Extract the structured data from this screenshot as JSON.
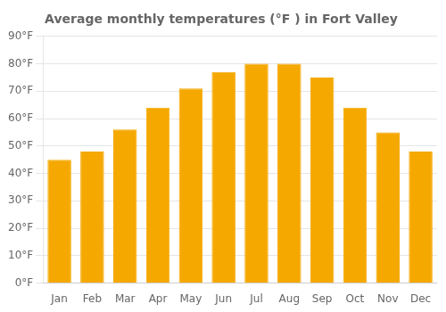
{
  "chart_data": {
    "type": "bar",
    "title": "Average monthly temperatures (°F ) in Fort Valley",
    "categories": [
      "Jan",
      "Feb",
      "Mar",
      "Apr",
      "May",
      "Jun",
      "Jul",
      "Aug",
      "Sep",
      "Oct",
      "Nov",
      "Dec"
    ],
    "values": [
      45,
      48,
      56,
      64,
      71,
      77,
      80,
      80,
      75,
      64,
      55,
      48
    ],
    "color": "#F5A800",
    "ylim": [
      0,
      90
    ],
    "yticks": [
      {
        "value": 0,
        "label": "0°F"
      },
      {
        "value": 10,
        "label": "10°F"
      },
      {
        "value": 20,
        "label": "20°F"
      },
      {
        "value": 30,
        "label": "30°F"
      },
      {
        "value": 40,
        "label": "40°F"
      },
      {
        "value": 50,
        "label": "50°F"
      },
      {
        "value": 60,
        "label": "60°F"
      },
      {
        "value": 70,
        "label": "70°F"
      },
      {
        "value": 80,
        "label": "80°F"
      },
      {
        "value": 90,
        "label": "90°F"
      }
    ],
    "grid": true
  }
}
